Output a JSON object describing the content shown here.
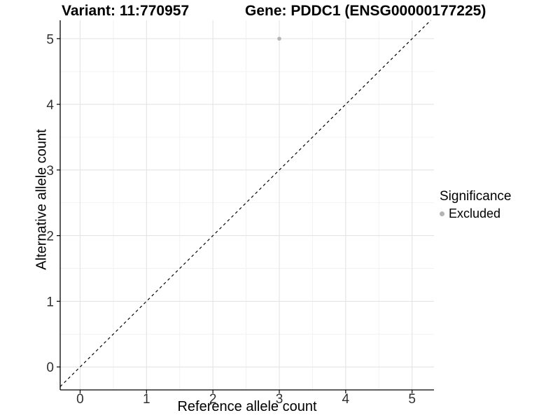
{
  "header": {
    "variant_title": "Variant: 11:770957",
    "gene_title": "Gene: PDDC1 (ENSG00000177225)"
  },
  "chart_data": {
    "type": "scatter",
    "title": "Variant: 11:770957   Gene: PDDC1 (ENSG00000177225)",
    "xlabel": "Reference allele count",
    "ylabel": "Alternative allele count",
    "x_ticks": [
      0,
      1,
      2,
      3,
      4,
      5
    ],
    "y_ticks": [
      0,
      1,
      2,
      3,
      4,
      5
    ],
    "xlim": [
      -0.3,
      5.33
    ],
    "ylim": [
      -0.35,
      5.28
    ],
    "grid": "on",
    "minor_grid_step": 0.5,
    "legend_position": "right",
    "reference_line": {
      "kind": "identity",
      "slope": 1,
      "intercept": 0,
      "style": "dashed",
      "color": "#000000"
    },
    "series": [
      {
        "name": "Excluded",
        "color": "#b4b4b4",
        "points": [
          [
            3,
            5
          ]
        ]
      }
    ],
    "legend": {
      "title": "Significance",
      "entries": [
        {
          "label": "Excluded",
          "color": "#b4b4b4",
          "marker": "circle"
        }
      ]
    },
    "colors": {
      "background": "#ffffff",
      "axis_line": "#000000",
      "tick_label": "#303030",
      "grid_major": "#e4e4e4",
      "grid_minor": "#f1f1f1",
      "point": "#b4b4b4"
    }
  }
}
